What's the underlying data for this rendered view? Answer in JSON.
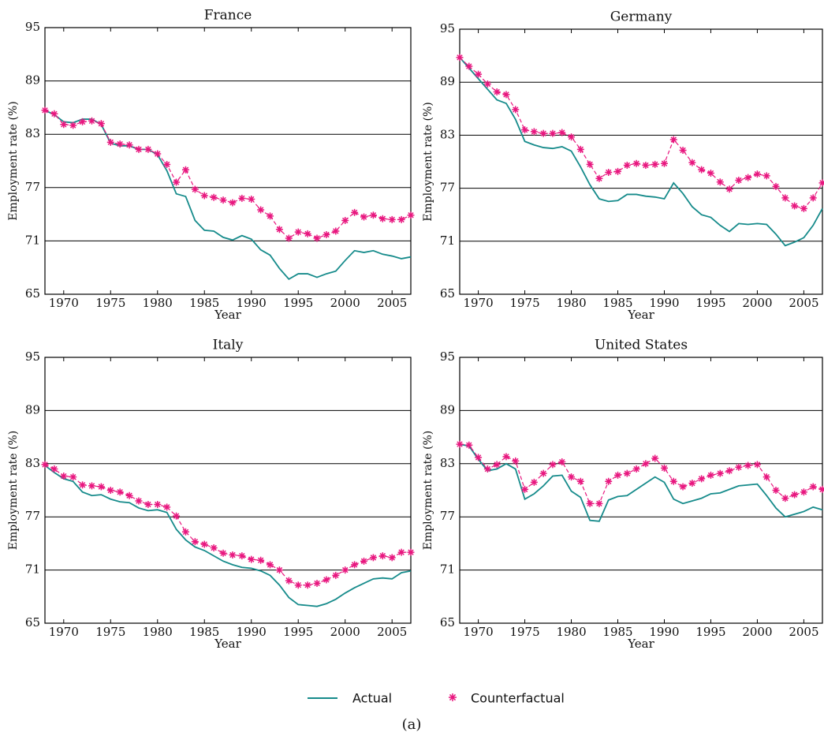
{
  "chart_data": [
    {
      "type": "line",
      "title": "France",
      "x_label": "Year",
      "y_label": "Employment rate (%)",
      "x": [
        1968,
        1969,
        1970,
        1971,
        1972,
        1973,
        1974,
        1975,
        1976,
        1977,
        1978,
        1979,
        1980,
        1981,
        1982,
        1983,
        1984,
        1985,
        1986,
        1987,
        1988,
        1989,
        1990,
        1991,
        1992,
        1993,
        1994,
        1995,
        1996,
        1997,
        1998,
        1999,
        2000,
        2001,
        2002,
        2003,
        2004,
        2005,
        2006,
        2007
      ],
      "series": [
        {
          "name": "Actual",
          "color": "#168b8b",
          "linestyle": "solid",
          "marker": "none",
          "values": [
            85.7,
            85.2,
            84.4,
            84.3,
            84.7,
            84.7,
            84.1,
            82.0,
            81.7,
            81.7,
            81.3,
            81.3,
            80.7,
            78.9,
            76.3,
            76.0,
            73.3,
            72.2,
            72.1,
            71.4,
            71.1,
            71.6,
            71.2,
            70.0,
            69.4,
            67.9,
            66.7,
            67.3,
            67.3,
            66.9,
            67.3,
            67.6,
            68.8,
            69.9,
            69.7,
            69.9,
            69.5,
            69.3,
            69.0,
            69.2
          ]
        },
        {
          "name": "Counterfactual",
          "color": "#e8177f",
          "linestyle": "dashed",
          "marker": "asterisk",
          "values": [
            85.7,
            85.3,
            84.1,
            84.0,
            84.4,
            84.5,
            84.2,
            82.1,
            81.9,
            81.8,
            81.3,
            81.3,
            80.8,
            79.6,
            77.6,
            79.0,
            76.8,
            76.1,
            75.9,
            75.6,
            75.3,
            75.8,
            75.7,
            74.5,
            73.8,
            72.3,
            71.3,
            72.0,
            71.8,
            71.3,
            71.7,
            72.1,
            73.3,
            74.2,
            73.7,
            73.9,
            73.5,
            73.4,
            73.4,
            73.9
          ]
        }
      ],
      "xlim": [
        1968,
        2007
      ],
      "ylim": [
        65,
        95
      ],
      "xticks": [
        1970,
        1975,
        1980,
        1985,
        1990,
        1995,
        2000,
        2005
      ],
      "yticks": [
        65,
        71,
        77,
        83,
        89,
        95
      ],
      "grid": true
    },
    {
      "type": "line",
      "title": "Germany",
      "x_label": "Year",
      "y_label": "Employment rate (%)",
      "x": [
        1968,
        1969,
        1970,
        1971,
        1972,
        1973,
        1974,
        1975,
        1976,
        1977,
        1978,
        1979,
        1980,
        1981,
        1982,
        1983,
        1984,
        1985,
        1986,
        1987,
        1988,
        1989,
        1990,
        1991,
        1992,
        1993,
        1994,
        1995,
        1996,
        1997,
        1998,
        1999,
        2000,
        2001,
        2002,
        2003,
        2004,
        2005,
        2006,
        2007
      ],
      "series": [
        {
          "name": "Actual",
          "color": "#168b8b",
          "linestyle": "solid",
          "marker": "none",
          "values": [
            91.8,
            90.6,
            89.4,
            88.2,
            87.0,
            86.6,
            84.8,
            82.3,
            81.9,
            81.6,
            81.5,
            81.7,
            81.2,
            79.4,
            77.4,
            75.8,
            75.5,
            75.6,
            76.3,
            76.3,
            76.1,
            76.0,
            75.8,
            77.6,
            76.4,
            74.9,
            74.0,
            73.7,
            72.8,
            72.1,
            73.0,
            72.9,
            73.0,
            72.9,
            71.8,
            70.5,
            70.9,
            71.4,
            72.8,
            74.7
          ]
        },
        {
          "name": "Counterfactual",
          "color": "#e8177f",
          "linestyle": "dashed",
          "marker": "asterisk",
          "values": [
            91.8,
            90.8,
            89.9,
            88.8,
            87.9,
            87.6,
            85.9,
            83.6,
            83.4,
            83.2,
            83.2,
            83.3,
            82.8,
            81.4,
            79.7,
            78.1,
            78.8,
            78.9,
            79.6,
            79.8,
            79.6,
            79.7,
            79.8,
            82.5,
            81.3,
            79.9,
            79.1,
            78.7,
            77.7,
            76.9,
            77.9,
            78.2,
            78.6,
            78.4,
            77.2,
            75.9,
            75.0,
            74.7,
            75.9,
            77.6
          ]
        }
      ],
      "xlim": [
        1968,
        2007
      ],
      "ylim": [
        65,
        95
      ],
      "xticks": [
        1970,
        1975,
        1980,
        1985,
        1990,
        1995,
        2000,
        2005
      ],
      "yticks": [
        65,
        71,
        77,
        83,
        89,
        95
      ],
      "grid": true
    },
    {
      "type": "line",
      "title": "Italy",
      "x_label": "Year",
      "y_label": "Employment rate (%)",
      "x": [
        1968,
        1969,
        1970,
        1971,
        1972,
        1973,
        1974,
        1975,
        1976,
        1977,
        1978,
        1979,
        1980,
        1981,
        1982,
        1983,
        1984,
        1985,
        1986,
        1987,
        1988,
        1989,
        1990,
        1991,
        1992,
        1993,
        1994,
        1995,
        1996,
        1997,
        1998,
        1999,
        2000,
        2001,
        2002,
        2003,
        2004,
        2005,
        2006,
        2007
      ],
      "series": [
        {
          "name": "Actual",
          "color": "#168b8b",
          "linestyle": "solid",
          "marker": "none",
          "values": [
            82.8,
            82.0,
            81.3,
            81.0,
            79.8,
            79.4,
            79.5,
            79.0,
            78.7,
            78.6,
            78.0,
            77.7,
            77.8,
            77.5,
            75.6,
            74.4,
            73.6,
            73.2,
            72.6,
            72.0,
            71.6,
            71.3,
            71.2,
            70.9,
            70.4,
            69.3,
            67.9,
            67.1,
            67.0,
            66.9,
            67.2,
            67.7,
            68.4,
            69.0,
            69.5,
            70.0,
            70.1,
            70.0,
            70.7,
            70.9
          ]
        },
        {
          "name": "Counterfactual",
          "color": "#e8177f",
          "linestyle": "dashed",
          "marker": "asterisk",
          "values": [
            82.9,
            82.4,
            81.6,
            81.5,
            80.6,
            80.5,
            80.4,
            80.0,
            79.8,
            79.4,
            78.8,
            78.4,
            78.4,
            78.1,
            77.1,
            75.3,
            74.2,
            73.9,
            73.5,
            72.9,
            72.7,
            72.6,
            72.2,
            72.1,
            71.6,
            71.0,
            69.8,
            69.3,
            69.3,
            69.5,
            69.9,
            70.4,
            71.0,
            71.6,
            72.0,
            72.4,
            72.6,
            72.4,
            73.0,
            73.0
          ]
        }
      ],
      "xlim": [
        1968,
        2007
      ],
      "ylim": [
        65,
        95
      ],
      "xticks": [
        1970,
        1975,
        1980,
        1985,
        1990,
        1995,
        2000,
        2005
      ],
      "yticks": [
        65,
        71,
        77,
        83,
        89,
        95
      ],
      "grid": true
    },
    {
      "type": "line",
      "title": "United States",
      "x_label": "Year",
      "y_label": "Employment rate (%)",
      "x": [
        1968,
        1969,
        1970,
        1971,
        1972,
        1973,
        1974,
        1975,
        1976,
        1977,
        1978,
        1979,
        1980,
        1981,
        1982,
        1983,
        1984,
        1985,
        1986,
        1987,
        1988,
        1989,
        1990,
        1991,
        1992,
        1993,
        1994,
        1995,
        1996,
        1997,
        1998,
        1999,
        2000,
        2001,
        2002,
        2003,
        2004,
        2005,
        2006,
        2007
      ],
      "series": [
        {
          "name": "Actual",
          "color": "#168b8b",
          "linestyle": "solid",
          "marker": "none",
          "values": [
            85.2,
            85.0,
            83.5,
            82.2,
            82.4,
            83.0,
            82.4,
            79.0,
            79.6,
            80.5,
            81.6,
            81.7,
            79.9,
            79.2,
            76.6,
            76.5,
            78.9,
            79.3,
            79.4,
            80.1,
            80.8,
            81.5,
            80.9,
            79.0,
            78.5,
            78.8,
            79.1,
            79.6,
            79.7,
            80.1,
            80.5,
            80.6,
            80.7,
            79.4,
            78.0,
            77.0,
            77.3,
            77.6,
            78.1,
            77.8
          ]
        },
        {
          "name": "Counterfactual",
          "color": "#e8177f",
          "linestyle": "dashed",
          "marker": "asterisk",
          "values": [
            85.2,
            85.1,
            83.7,
            82.4,
            82.9,
            83.8,
            83.3,
            80.1,
            80.9,
            81.9,
            82.9,
            83.2,
            81.5,
            81.0,
            78.5,
            78.5,
            81.0,
            81.7,
            81.9,
            82.4,
            83.0,
            83.6,
            82.5,
            81.0,
            80.4,
            80.8,
            81.3,
            81.7,
            81.9,
            82.2,
            82.6,
            82.8,
            82.9,
            81.5,
            80.0,
            79.1,
            79.5,
            79.8,
            80.4,
            80.1
          ]
        }
      ],
      "xlim": [
        1968,
        2007
      ],
      "ylim": [
        65,
        95
      ],
      "xticks": [
        1970,
        1975,
        1980,
        1985,
        1990,
        1995,
        2000,
        2005
      ],
      "yticks": [
        65,
        71,
        77,
        83,
        89,
        95
      ],
      "grid": true
    }
  ],
  "caption": "(a)"
}
